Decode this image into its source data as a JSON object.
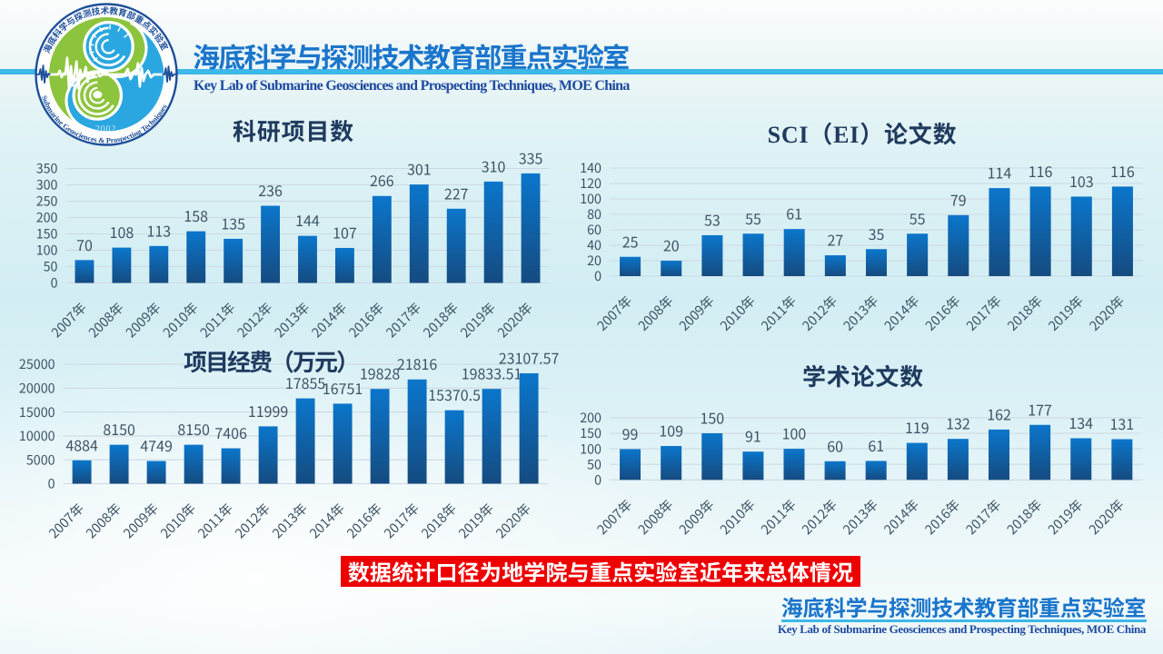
{
  "header": {
    "title_cn": "海底科学与探测技术教育部重点实验室",
    "title_en": "Key Lab of Submarine Geosciences and Prospecting Techniques, MOE China"
  },
  "logo": {
    "arc_text_cn": "海底科学与探测技术教育部重点实验室",
    "arc_text_en": "Submarine Geosciences & Prospecting Techniques",
    "year": "2002"
  },
  "banner": {
    "text": "数据统计口径为地学院与重点实验室近年来总体情况",
    "background": "#ee0000"
  },
  "footer": {
    "title_cn": "海底科学与探测技术教育部重点实验室",
    "title_en": "Key Lab of Submarine Geosciences and Prospecting Techniques, MOE China"
  },
  "colors": {
    "bar_gradient_top": "#0b76cb",
    "bar_gradient_bottom": "#154b80",
    "accent_stripe": "#3eb7e9",
    "header_title_blue": "#1a75cb",
    "header_subtitle_navy": "#1d4aa0",
    "chart_title_navy": "#1f3a5e",
    "axis_label_gray": "#3e5365",
    "gridline": "#cdd9e2",
    "banner_red": "#ee0000",
    "logo_green": "#8dc43e",
    "logo_blue": "#2aa7e0",
    "logo_ring_navy": "#1d4f9a"
  },
  "chart_data": [
    {
      "type": "bar",
      "title": "科研项目数",
      "categories": [
        "2007年",
        "2008年",
        "2009年",
        "2010年",
        "2011年",
        "2012年",
        "2013年",
        "2014年",
        "2016年",
        "2017年",
        "2018年",
        "2019年",
        "2020年"
      ],
      "values": [
        70,
        108,
        113,
        158,
        135,
        236,
        144,
        107,
        266,
        301,
        227,
        310,
        335
      ],
      "ylim": [
        0,
        350
      ],
      "ytick_step": 50,
      "grid": true,
      "legend": "none",
      "xlabel": "",
      "ylabel": ""
    },
    {
      "type": "bar",
      "title": "SCI（EI）论文数",
      "categories": [
        "2007年",
        "2008年",
        "2009年",
        "2010年",
        "2011年",
        "2012年",
        "2013年",
        "2014年",
        "2016年",
        "2017年",
        "2018年",
        "2019年",
        "2020年"
      ],
      "values": [
        25,
        20,
        53,
        55,
        61,
        27,
        35,
        55,
        79,
        114,
        116,
        103,
        116
      ],
      "ylim": [
        0,
        140
      ],
      "ytick_step": 20,
      "grid": true,
      "legend": "none",
      "xlabel": "",
      "ylabel": ""
    },
    {
      "type": "bar",
      "title": "项目经费（万元）",
      "categories": [
        "2007年",
        "2008年",
        "2009年",
        "2010年",
        "2011年",
        "2012年",
        "2013年",
        "2014年",
        "2016年",
        "2017年",
        "2018年",
        "2019年",
        "2020年"
      ],
      "values": [
        4884,
        8150,
        4749,
        8150,
        7406,
        11999,
        17855,
        16751,
        19828,
        21816,
        15370.5,
        19833.51,
        23107.57
      ],
      "ylim": [
        0,
        25000
      ],
      "ytick_step": 5000,
      "grid": true,
      "legend": "none",
      "xlabel": "",
      "ylabel": ""
    },
    {
      "type": "bar",
      "title": "学术论文数",
      "categories": [
        "2007年",
        "2008年",
        "2009年",
        "2010年",
        "2011年",
        "2012年",
        "2013年",
        "2014年",
        "2016年",
        "2017年",
        "2018年",
        "2019年",
        "2020年"
      ],
      "values": [
        99,
        109,
        150,
        91,
        100,
        60,
        61,
        119,
        132,
        162,
        177,
        134,
        131
      ],
      "ylim": [
        0,
        200
      ],
      "ytick_step": 50,
      "grid": true,
      "legend": "none",
      "xlabel": "",
      "ylabel": ""
    }
  ]
}
